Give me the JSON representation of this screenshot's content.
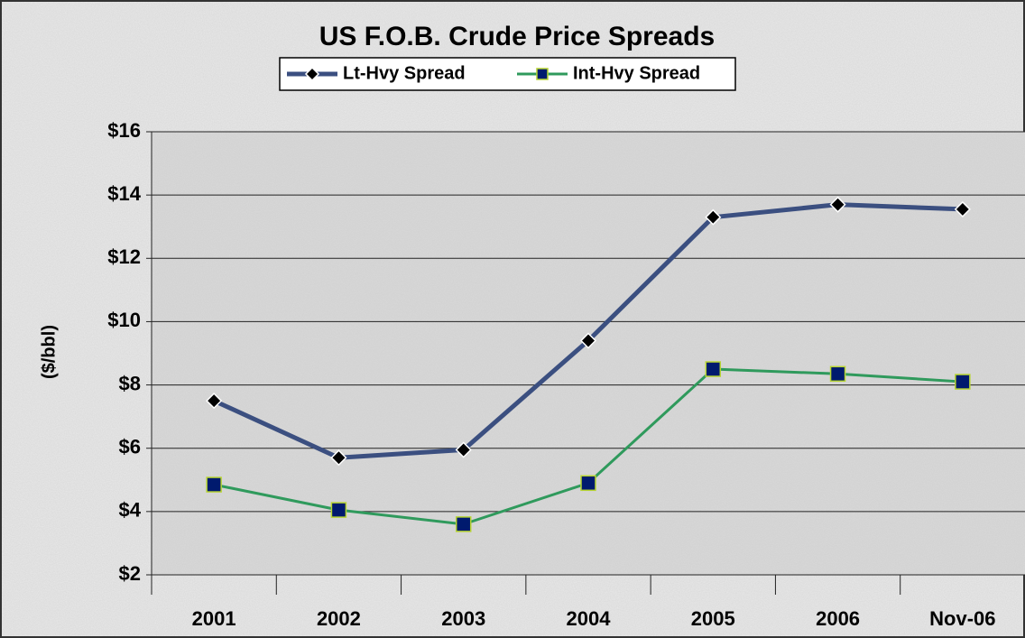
{
  "chart_data": {
    "type": "line",
    "title": "US F.O.B. Crude Price Spreads",
    "y_label": "($/bbl)",
    "categories": [
      "2001",
      "2002",
      "2003",
      "2004",
      "2005",
      "2006",
      "Nov-06"
    ],
    "series": [
      {
        "name": "Lt-Hvy Spread",
        "color": "#3b4f80",
        "marker": "diamond",
        "values": [
          7.5,
          5.7,
          5.95,
          9.4,
          13.3,
          13.7,
          13.55
        ]
      },
      {
        "name": "Int-Hvy Spread",
        "color": "#2f9a5c",
        "marker": "square",
        "values": [
          4.85,
          4.05,
          3.6,
          4.9,
          8.5,
          8.35,
          8.1
        ]
      }
    ],
    "ylim": [
      2,
      16
    ],
    "yticks": [
      {
        "value": 2,
        "label": "$2"
      },
      {
        "value": 4,
        "label": "$4"
      },
      {
        "value": 6,
        "label": "$6"
      },
      {
        "value": 8,
        "label": "$8"
      },
      {
        "value": 10,
        "label": "$10"
      },
      {
        "value": 12,
        "label": "$12"
      },
      {
        "value": 14,
        "label": "$14"
      },
      {
        "value": 16,
        "label": "$16"
      }
    ],
    "grid": true,
    "legend": "top"
  }
}
